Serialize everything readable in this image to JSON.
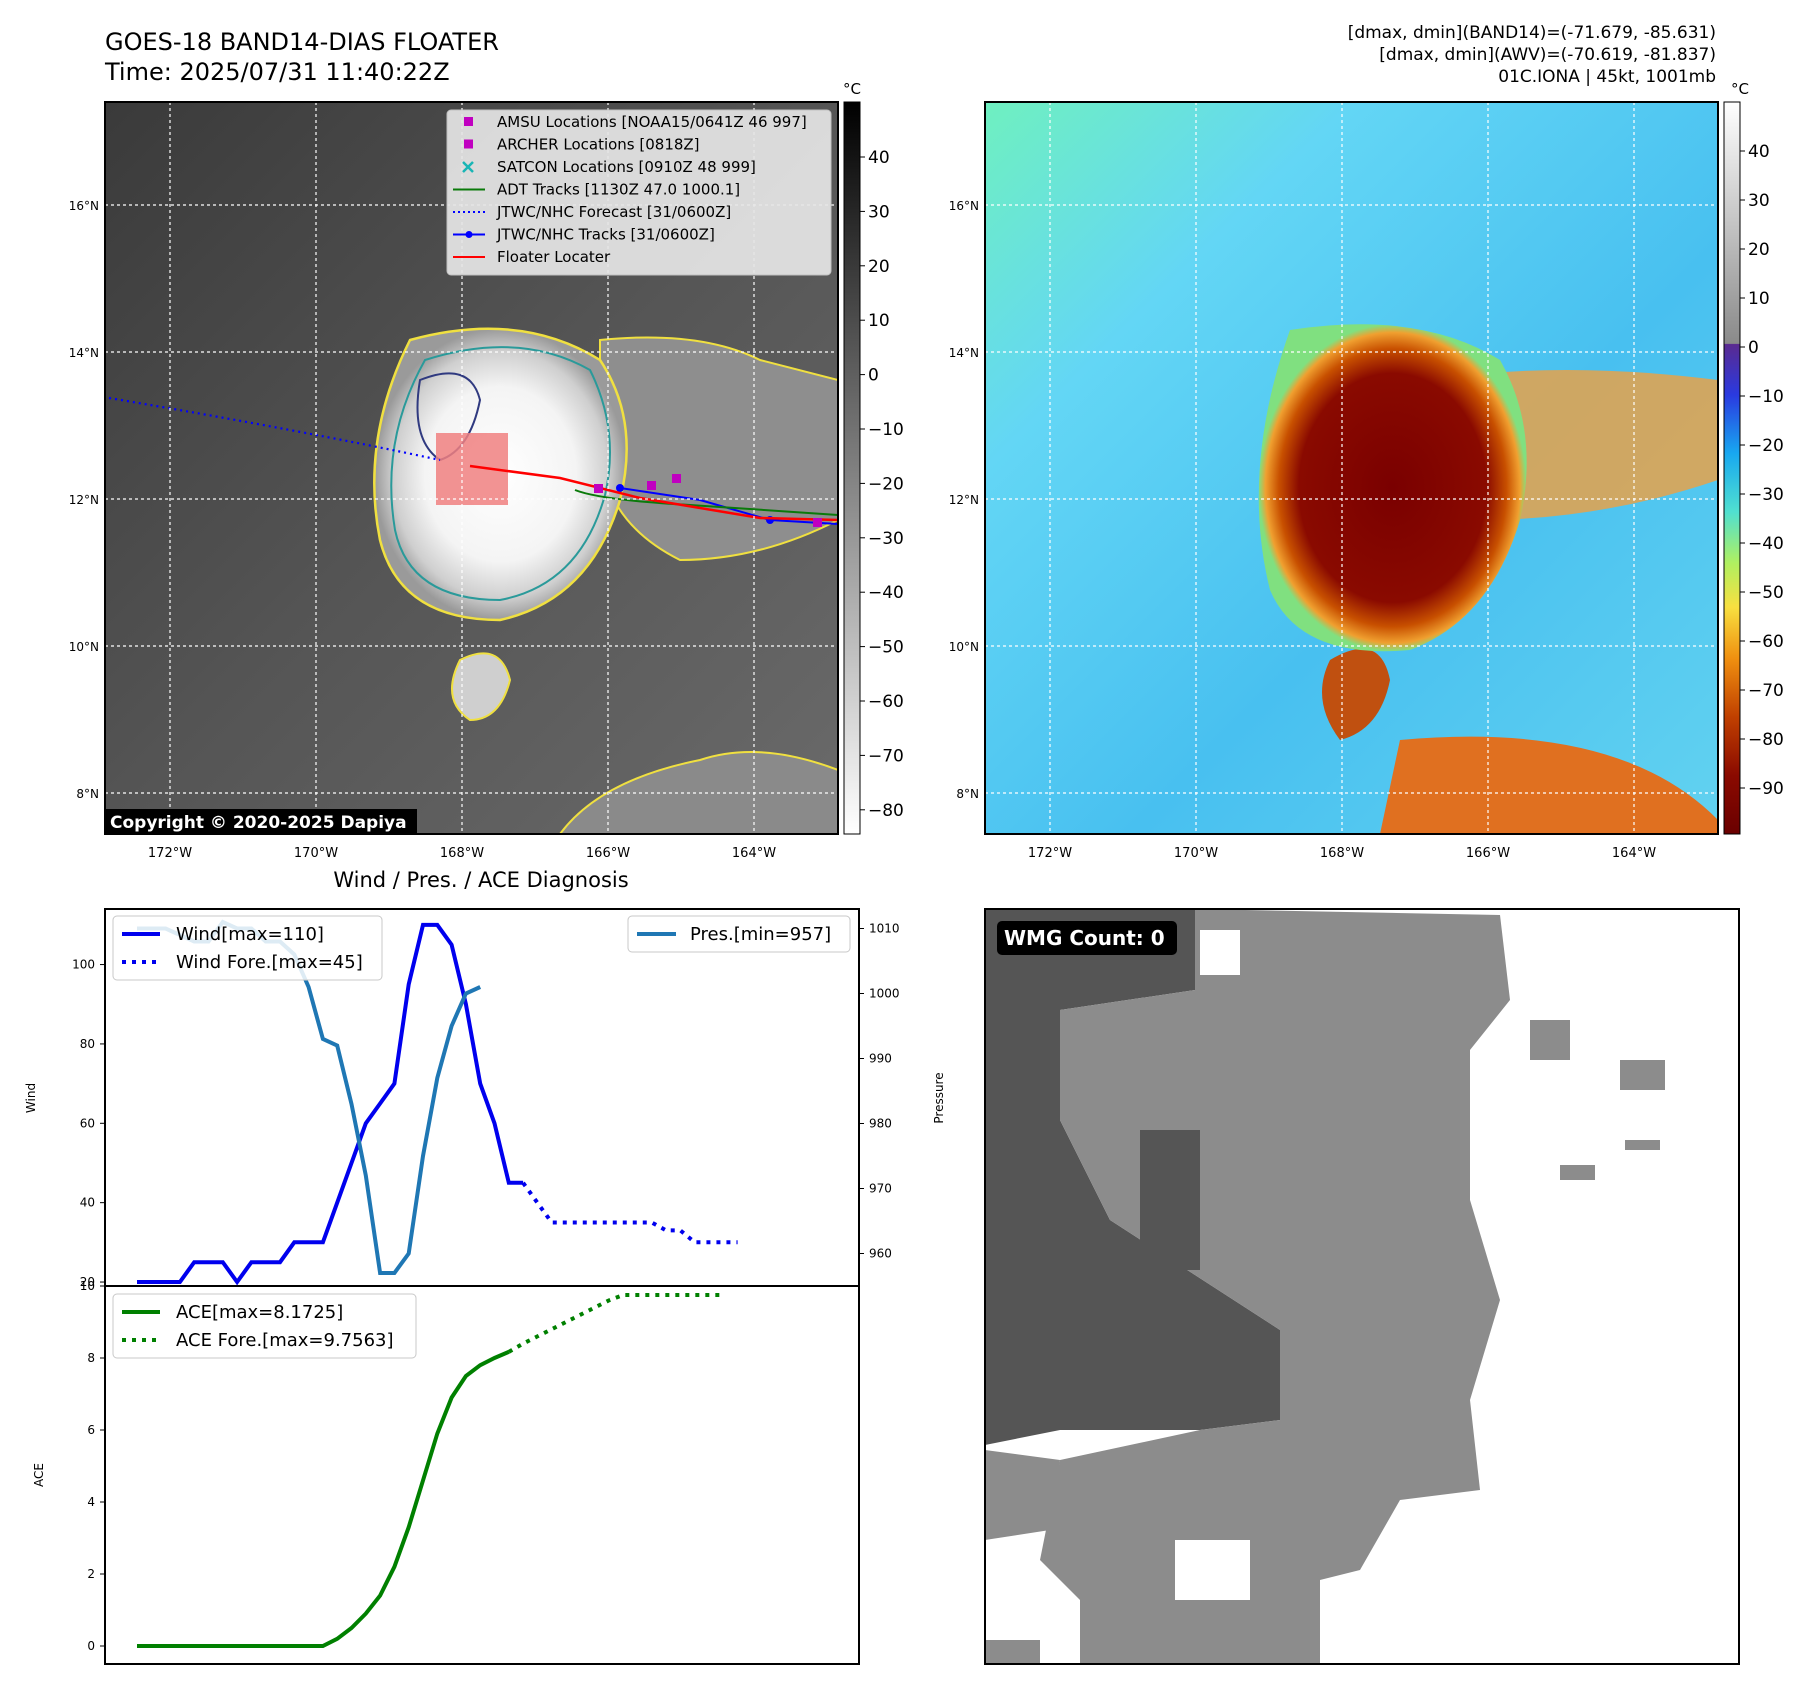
{
  "header": {
    "title": "GOES-18 BAND14-DIAS FLOATER",
    "time": "Time: 2025/07/31 11:40:22Z",
    "dmax_band14": "[dmax, dmin](BAND14)=(-71.679, -85.631)",
    "dmax_awv": "[dmax, dmin](AWV)=(-70.619, -81.837)",
    "storm": "01C.IONA | 45kt, 1001mb"
  },
  "map_ir": {
    "lon_labels": [
      "172°W",
      "170°W",
      "168°W",
      "166°W",
      "164°W"
    ],
    "lat_labels": [
      "16°N",
      "14°N",
      "12°N",
      "10°N",
      "8°N"
    ],
    "copyright": "Copyright © 2020-2025 Dapiya",
    "colorbar_unit": "°C",
    "colorbar_ticks": [
      "40",
      "30",
      "20",
      "10",
      "0",
      "−10",
      "−20",
      "−30",
      "−40",
      "−50",
      "−60",
      "−70",
      "−80"
    ],
    "legend": [
      {
        "label": "AMSU Locations [NOAA15/0641Z 46 997]",
        "symbol": "square",
        "color": "#c000c0"
      },
      {
        "label": "ARCHER Locations [0818Z]",
        "symbol": "square",
        "color": "#c000c0"
      },
      {
        "label": "SATCON Locations [0910Z 48 999]",
        "symbol": "x",
        "color": "#19b5b5"
      },
      {
        "label": "ADT Tracks [1130Z 47.0 1000.1]",
        "symbol": "line",
        "color": "#0a7a0a"
      },
      {
        "label": "JTWC/NHC Forecast [31/0600Z]",
        "symbol": "dotted",
        "color": "#0000ff"
      },
      {
        "label": "JTWC/NHC Tracks [31/0600Z]",
        "symbol": "line-dot",
        "color": "#0000ff"
      },
      {
        "label": "Floater Locater",
        "symbol": "line",
        "color": "#ff0000"
      }
    ]
  },
  "map_awv": {
    "lon_labels": [
      "172°W",
      "170°W",
      "168°W",
      "166°W",
      "164°W"
    ],
    "lat_labels": [
      "16°N",
      "14°N",
      "12°N",
      "10°N",
      "8°N"
    ],
    "colorbar_unit": "°C",
    "colorbar_ticks": [
      "40",
      "30",
      "20",
      "10",
      "0",
      "−10",
      "−20",
      "−30",
      "−40",
      "−50",
      "−60",
      "−70",
      "−80",
      "−90"
    ]
  },
  "wmg": {
    "label": "WMG Count: 0"
  },
  "chart_data": [
    {
      "type": "line",
      "title": "Wind / Pres. / ACE Diagnosis",
      "ylabel": "Wind",
      "ylabel_right": "Pressure",
      "ylim": [
        19,
        114
      ],
      "ylim_right": [
        955,
        1013
      ],
      "yticks": [
        20,
        40,
        60,
        80,
        100
      ],
      "yticks_right": [
        960,
        970,
        980,
        990,
        1000,
        1010
      ],
      "series": [
        {
          "name": "Wind[max=110]",
          "color": "#0000ee",
          "style": "solid",
          "values": [
            20,
            20,
            20,
            20,
            25,
            25,
            25,
            20,
            25,
            25,
            25,
            30,
            30,
            30,
            40,
            50,
            60,
            65,
            70,
            95,
            110,
            110,
            105,
            90,
            70,
            60,
            45,
            45
          ]
        },
        {
          "name": "Wind Fore.[max=45]",
          "color": "#0000ee",
          "style": "dotted",
          "values": [
            null,
            null,
            null,
            null,
            null,
            null,
            null,
            null,
            null,
            null,
            null,
            null,
            null,
            null,
            null,
            null,
            null,
            null,
            null,
            null,
            null,
            null,
            null,
            null,
            null,
            null,
            null,
            45,
            40,
            35,
            35,
            35,
            35,
            35,
            35,
            35,
            35,
            33,
            33,
            30,
            30,
            30,
            30
          ]
        },
        {
          "name": "Pres.[min=957]",
          "color": "#1f77b4",
          "style": "solid",
          "axis": "right",
          "values": [
            1010,
            1010,
            1010,
            1009,
            1008,
            1008,
            1011,
            1010,
            1010,
            1008,
            1008,
            1006,
            1001,
            993,
            992,
            983,
            972,
            957,
            957,
            960,
            975,
            987,
            995,
            1000,
            1001
          ]
        }
      ]
    },
    {
      "type": "line",
      "ylabel": "ACE",
      "ylim": [
        -0.5,
        10
      ],
      "yticks": [
        0,
        2,
        4,
        6,
        8,
        10
      ],
      "series": [
        {
          "name": "ACE[max=8.1725]",
          "color": "#008000",
          "style": "solid",
          "values": [
            0,
            0,
            0,
            0,
            0,
            0,
            0,
            0,
            0,
            0,
            0,
            0,
            0,
            0,
            0.2,
            0.5,
            0.9,
            1.4,
            2.2,
            3.3,
            4.6,
            5.9,
            6.9,
            7.5,
            7.8,
            8.0,
            8.17
          ]
        },
        {
          "name": "ACE Fore.[max=9.7563]",
          "color": "#008000",
          "style": "dotted",
          "values": [
            null,
            null,
            null,
            null,
            null,
            null,
            null,
            null,
            null,
            null,
            null,
            null,
            null,
            null,
            null,
            null,
            null,
            null,
            null,
            null,
            null,
            null,
            null,
            null,
            null,
            null,
            8.17,
            8.4,
            8.6,
            8.8,
            9.0,
            9.2,
            9.4,
            9.6,
            9.75,
            9.75,
            9.75,
            9.75,
            9.75,
            9.75,
            9.75,
            9.75
          ]
        }
      ]
    }
  ]
}
